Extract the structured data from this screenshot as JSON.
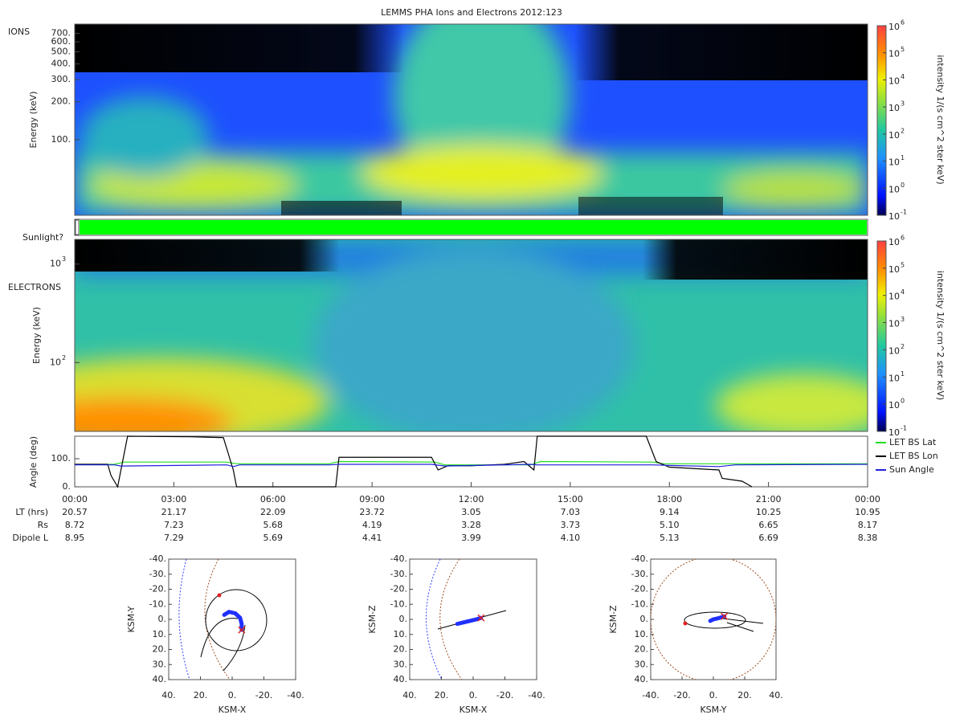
{
  "chart_data": [
    {
      "type": "heatmap",
      "title": "LEMMS PHA Ions and Electrons  2012:123",
      "label": "IONS",
      "ylabel": "Energy (keV)",
      "yscale": "log",
      "ylim": [
        25,
        830
      ],
      "yticks": [
        {
          "value": 100,
          "label": "100."
        },
        {
          "value": 200,
          "label": "200."
        },
        {
          "value": 300,
          "label": "300."
        },
        {
          "value": 400,
          "label": "400."
        },
        {
          "value": 500,
          "label": "500."
        },
        {
          "value": 600,
          "label": "600."
        },
        {
          "value": 700,
          "label": "700."
        }
      ],
      "colorbar": {
        "label": "intensity 1/(s cm^2 ster keV)",
        "lim": [
          0.1,
          1000000
        ],
        "ticks": [
          {
            "value": 0.1,
            "label": "10",
            "sup": "-1"
          },
          {
            "value": 1,
            "label": "10",
            "sup": "0"
          },
          {
            "value": 10,
            "label": "10",
            "sup": "1"
          },
          {
            "value": 100,
            "label": "10",
            "sup": "2"
          },
          {
            "value": 1000,
            "label": "10",
            "sup": "3"
          },
          {
            "value": 10000,
            "label": "10",
            "sup": "4"
          },
          {
            "value": 100000,
            "label": "10",
            "sup": "5"
          },
          {
            "value": 1000000,
            "label": "10",
            "sup": "6"
          }
        ]
      }
    },
    {
      "type": "band",
      "label": "Sunlight?",
      "color": "#00ff00"
    },
    {
      "type": "heatmap",
      "label": "ELECTRONS",
      "ylabel": "Energy (keV)",
      "yscale": "log",
      "ylim": [
        20,
        1780
      ],
      "yticks": [
        {
          "value": 100,
          "label": "10",
          "sup": "2"
        },
        {
          "value": 1000,
          "label": "10",
          "sup": "3"
        }
      ],
      "colorbar": {
        "label": "intensity 1/(s cm^2 ster keV)",
        "lim": [
          0.1,
          1000000
        ],
        "ticks": [
          {
            "value": 0.1,
            "label": "10",
            "sup": "-1"
          },
          {
            "value": 1,
            "label": "10",
            "sup": "0"
          },
          {
            "value": 10,
            "label": "10",
            "sup": "1"
          },
          {
            "value": 100,
            "label": "10",
            "sup": "2"
          },
          {
            "value": 1000,
            "label": "10",
            "sup": "3"
          },
          {
            "value": 10000,
            "label": "10",
            "sup": "4"
          },
          {
            "value": 100000,
            "label": "10",
            "sup": "5"
          },
          {
            "value": 1000000,
            "label": "10",
            "sup": "6"
          }
        ]
      }
    },
    {
      "type": "line",
      "ylabel": "Angle (deg)",
      "xlim": [
        0,
        24
      ],
      "ylim": [
        0,
        180
      ],
      "legend": "right",
      "xticks": [
        {
          "value": 0,
          "label": "00:00"
        },
        {
          "value": 3,
          "label": "03:00"
        },
        {
          "value": 6,
          "label": "06:00"
        },
        {
          "value": 9,
          "label": "09:00"
        },
        {
          "value": 12,
          "label": "12:00"
        },
        {
          "value": 15,
          "label": "15:00"
        },
        {
          "value": 18,
          "label": "18:00"
        },
        {
          "value": 21,
          "label": "21:00"
        },
        {
          "value": 24,
          "label": "00:00"
        }
      ],
      "yticks": [
        {
          "value": 0,
          "label": "0."
        },
        {
          "value": 100,
          "label": "100."
        }
      ],
      "series": [
        {
          "name": "LET BS Lat",
          "color": "#22dd22",
          "x": [
            0,
            1.2,
            1.5,
            4.6,
            4.9,
            7.7,
            8,
            10.9,
            11.2,
            13.8,
            14.1,
            17.5,
            17.8,
            24
          ],
          "values": [
            80,
            80,
            88,
            88,
            82,
            82,
            90,
            88,
            78,
            78,
            90,
            88,
            82,
            82
          ]
        },
        {
          "name": "LET BS Lon",
          "color": "#000000",
          "x": [
            0,
            1.0,
            1.1,
            1.3,
            1.6,
            3.5,
            4.5,
            4.8,
            4.9,
            7.9,
            8.0,
            10.8,
            11.0,
            11.3,
            12,
            13,
            13.6,
            13.9,
            14.0,
            17.3,
            17.6,
            18,
            19.5,
            19.6,
            20.2,
            20.5
          ],
          "values": [
            80,
            80,
            40,
            0,
            180,
            178,
            175,
            60,
            0,
            0,
            105,
            105,
            60,
            75,
            75,
            80,
            90,
            60,
            180,
            180,
            90,
            70,
            60,
            30,
            20,
            0
          ]
        },
        {
          "name": "Sun Angle",
          "color": "#2020dd",
          "x": [
            0,
            1.2,
            1.4,
            4.6,
            4.8,
            5.0,
            7.7,
            8,
            10.8,
            11.2,
            13.8,
            14,
            17.5,
            18,
            19.5,
            20,
            24
          ],
          "values": [
            78,
            78,
            74,
            78,
            72,
            78,
            78,
            80,
            80,
            74,
            80,
            78,
            78,
            76,
            72,
            78,
            80
          ]
        }
      ],
      "table": [
        {
          "label": "LT (hrs)",
          "values": [
            "20.57",
            "21.17",
            "22.09",
            "23.72",
            "3.05",
            "7.03",
            "9.14",
            "10.25",
            "10.95"
          ]
        },
        {
          "label": "Rs",
          "values": [
            "8.72",
            "7.23",
            "5.68",
            "4.19",
            "3.28",
            "3.73",
            "5.10",
            "6.65",
            "8.17"
          ]
        },
        {
          "label": "Dipole L",
          "values": [
            "8.95",
            "7.29",
            "5.69",
            "4.41",
            "3.99",
            "4.10",
            "5.13",
            "6.69",
            "8.38"
          ]
        }
      ]
    },
    {
      "type": "orbit",
      "xlabel": "KSM-X",
      "ylabel": "KSM-Y",
      "xlim": [
        40,
        -40
      ],
      "ylim": [
        -40,
        40
      ],
      "xticks": [
        {
          "value": 40,
          "label": "40."
        },
        {
          "value": 20,
          "label": "20."
        },
        {
          "value": 0,
          "label": "0."
        },
        {
          "value": -20,
          "label": "-20."
        },
        {
          "value": -40,
          "label": "-40."
        }
      ],
      "yticks": [
        {
          "value": -40,
          "label": "-40."
        },
        {
          "value": -30,
          "label": "-30."
        },
        {
          "value": -20,
          "label": "-20."
        },
        {
          "value": -10,
          "label": "-10."
        },
        {
          "value": 0,
          "label": "0."
        },
        {
          "value": 10,
          "label": "10."
        },
        {
          "value": 20,
          "label": "20."
        },
        {
          "value": 30,
          "label": "30."
        },
        {
          "value": 40,
          "label": "40."
        }
      ],
      "series": [
        {
          "color": "#2030ff",
          "x": [
            5,
            2,
            -2,
            -5,
            -6,
            -6
          ],
          "values": [
            -3,
            -5,
            -4,
            -1,
            3,
            7
          ]
        }
      ]
    },
    {
      "type": "orbit",
      "xlabel": "KSM-X",
      "ylabel": "KSM-Z",
      "xlim": [
        40,
        -40
      ],
      "ylim": [
        -40,
        40
      ],
      "xticks": [
        {
          "value": 40,
          "label": "40."
        },
        {
          "value": 20,
          "label": "20."
        },
        {
          "value": 0,
          "label": "0."
        },
        {
          "value": -20,
          "label": "-20."
        },
        {
          "value": -40,
          "label": "-40."
        }
      ],
      "yticks": [
        {
          "value": -40,
          "label": "-40."
        },
        {
          "value": -30,
          "label": "-30."
        },
        {
          "value": -20,
          "label": "-20."
        },
        {
          "value": -10,
          "label": "-10."
        },
        {
          "value": 0,
          "label": "0."
        },
        {
          "value": 10,
          "label": "10."
        },
        {
          "value": 20,
          "label": "20."
        },
        {
          "value": 30,
          "label": "30."
        },
        {
          "value": 40,
          "label": "40."
        }
      ],
      "series": [
        {
          "color": "#2030ff",
          "x": [
            10,
            4,
            -2,
            -5
          ],
          "values": [
            3,
            1.5,
            0,
            -1
          ]
        }
      ]
    },
    {
      "type": "orbit",
      "xlabel": "KSM-Y",
      "ylabel": "KSM-Z",
      "xlim": [
        -40,
        40
      ],
      "ylim": [
        -40,
        40
      ],
      "xticks": [
        {
          "value": -40,
          "label": "-40."
        },
        {
          "value": -20,
          "label": "-20."
        },
        {
          "value": 0,
          "label": "0."
        },
        {
          "value": 20,
          "label": "20."
        },
        {
          "value": 40,
          "label": "40."
        }
      ],
      "yticks": [
        {
          "value": -40,
          "label": "-40."
        },
        {
          "value": -30,
          "label": "-30."
        },
        {
          "value": -20,
          "label": "-20."
        },
        {
          "value": -10,
          "label": "-10."
        },
        {
          "value": 0,
          "label": "0."
        },
        {
          "value": 10,
          "label": "10."
        },
        {
          "value": 20,
          "label": "20."
        },
        {
          "value": 30,
          "label": "30."
        },
        {
          "value": 40,
          "label": "40."
        }
      ],
      "series": [
        {
          "color": "#2030ff",
          "x": [
            -2,
            0,
            4,
            7
          ],
          "values": [
            1,
            0,
            -1,
            -2
          ]
        }
      ]
    }
  ]
}
